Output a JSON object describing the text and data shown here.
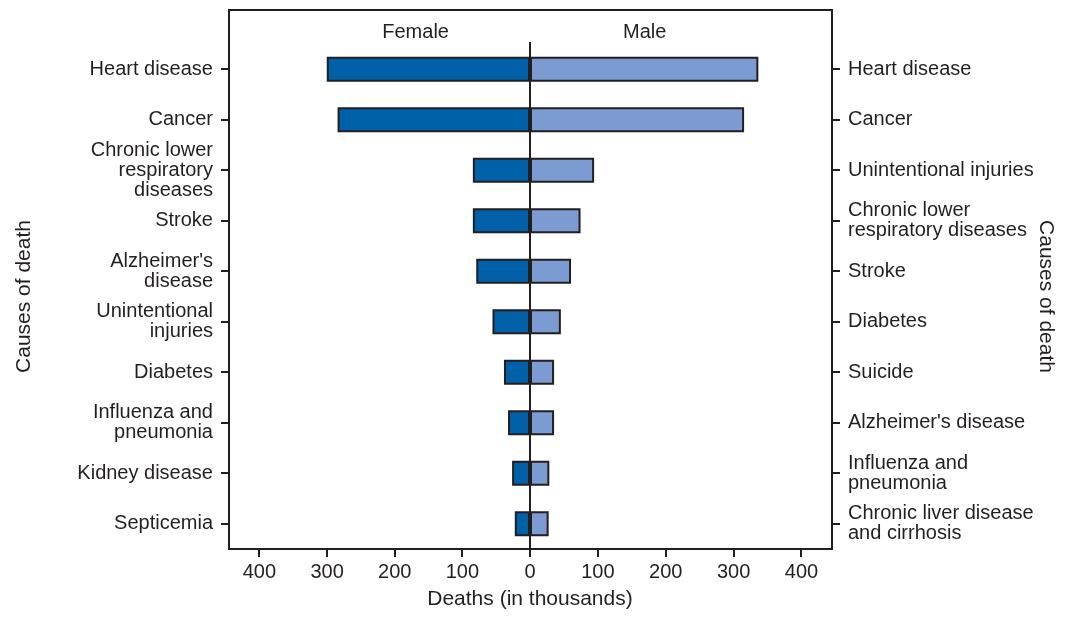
{
  "chart_data": [
    {
      "type": "bar",
      "orientation": "horizontal",
      "title": "Female",
      "ylabel": "Causes of death",
      "xlabel": "Deaths (in thousands)",
      "categories": [
        "Heart disease",
        "Cancer",
        "Chronic lower respiratory diseases",
        "Stroke",
        "Alzheimer's disease",
        "Unintentional injuries",
        "Diabetes",
        "Influenza and pneumonia",
        "Kidney disease",
        "Septicemia"
      ],
      "values": [
        299,
        283,
        83,
        83,
        78,
        54,
        37,
        31,
        25,
        21
      ],
      "color": "#0060a8",
      "xlim": [
        445,
        0
      ],
      "xticks": [
        400,
        300,
        200,
        100,
        0
      ],
      "grid": false
    },
    {
      "type": "bar",
      "orientation": "horizontal",
      "title": "Male",
      "ylabel": "Causes of death",
      "categories": [
        "Heart disease",
        "Cancer",
        "Unintentional injuries",
        "Chronic lower respiratory diseases",
        "Stroke",
        "Diabetes",
        "Suicide",
        "Alzheimer's disease",
        "Influenza and pneumonia",
        "Chronic liver disease and cirrhosis"
      ],
      "values": [
        335,
        314,
        93,
        73,
        59,
        44,
        34,
        34,
        27,
        26
      ],
      "color": "#7b9bd2",
      "xlim": [
        0,
        445
      ],
      "xticks": [
        {
          "value": 0,
          "label": null
        },
        100,
        200,
        300,
        400
      ],
      "grid": false
    }
  ]
}
